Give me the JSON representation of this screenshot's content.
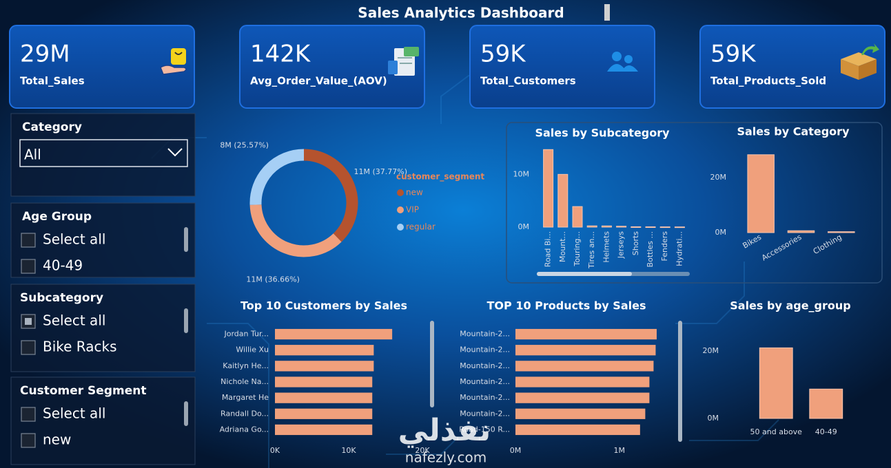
{
  "header": {
    "title": "Sales Analytics Dashboard"
  },
  "kpis": [
    {
      "value": "29M",
      "label": "Total_Sales"
    },
    {
      "value": "142K",
      "label": "Avg_Order_Value_(AOV)"
    },
    {
      "value": "59K",
      "label": "Total_Customers"
    },
    {
      "value": "59K",
      "label": "Total_Products_Sold"
    }
  ],
  "slicers": [
    {
      "title": "Category",
      "selected": "All"
    },
    {
      "title": "Age Group",
      "items": [
        "Select all",
        "40-49"
      ],
      "checked": [
        false,
        false
      ]
    },
    {
      "title": "Subcategory",
      "items": [
        "Select all",
        "Bike Racks"
      ],
      "checked": [
        true,
        false
      ]
    },
    {
      "title": "Customer Segment",
      "items": [
        "Select all",
        "new"
      ],
      "checked": [
        false,
        false
      ]
    }
  ],
  "chart_data": [
    {
      "type": "donut",
      "legend_title": "customer_segment",
      "categories": [
        "new",
        "VIP",
        "regular"
      ],
      "values": [
        37.77,
        36.66,
        25.57
      ],
      "value_labels": [
        "11M (37.77%)",
        "11M (36.66%)",
        "8M (25.57%)"
      ],
      "colors": [
        "#b5532e",
        "#f0a07c",
        "#a6cff5"
      ]
    },
    {
      "type": "bar",
      "title": "Sales by Subcategory",
      "categories": [
        "Road Bi...",
        "Mount...",
        "Touring...",
        "Tires an...",
        "Helmets",
        "Jerseys",
        "Shorts",
        "Bottles ...",
        "Fenders",
        "Hydrati..."
      ],
      "values": [
        14.7,
        10.0,
        3.9,
        0.24,
        0.23,
        0.17,
        0.07,
        0.06,
        0.05,
        0.04
      ],
      "color": "#f0a07c",
      "ylim": [
        0,
        15
      ],
      "yticks": [
        {
          "value": 0,
          "label": "0M"
        },
        {
          "value": 10,
          "label": "10M"
        }
      ],
      "grid": false
    },
    {
      "type": "bar",
      "title": "Sales by Category",
      "categories": [
        "Bikes",
        "Accessories",
        "Clothing"
      ],
      "values": [
        28.3,
        0.7,
        0.34
      ],
      "color": "#f0a07c",
      "ylim": [
        0,
        30
      ],
      "yticks": [
        {
          "value": 0,
          "label": "0M"
        },
        {
          "value": 20,
          "label": "20M"
        }
      ],
      "grid": false
    },
    {
      "type": "hbar",
      "title": "Top 10 Customers by Sales",
      "categories": [
        "Jordan Tur...",
        "Willie Xu",
        "Kaitlyn He...",
        "Nichole Na...",
        "Margaret He",
        "Randall Do...",
        "Adriana Go..."
      ],
      "values": [
        15.9,
        13.4,
        13.4,
        13.2,
        13.2,
        13.2,
        13.2
      ],
      "color": "#f0a07c",
      "xlim": [
        0,
        20
      ],
      "xticks": [
        {
          "value": 0,
          "label": "0K"
        },
        {
          "value": 10,
          "label": "10K"
        },
        {
          "value": 20,
          "label": "20K"
        }
      ],
      "grid": false
    },
    {
      "type": "hbar",
      "title": "TOP 10 Products by Sales",
      "categories": [
        "Mountain-2...",
        "Mountain-2...",
        "Mountain-2...",
        "Mountain-2...",
        "Mountain-2...",
        "Mountain-2...",
        "Road-150 R..."
      ],
      "values": [
        1.36,
        1.35,
        1.33,
        1.29,
        1.29,
        1.25,
        1.2
      ],
      "color": "#f0a07c",
      "xlim": [
        0,
        1.4
      ],
      "xticks": [
        {
          "value": 0,
          "label": "0M"
        },
        {
          "value": 1,
          "label": "1M"
        }
      ],
      "grid": false
    },
    {
      "type": "bar",
      "title": "Sales by age_group",
      "categories": [
        "50 and above",
        "40-49"
      ],
      "values": [
        20.9,
        8.7
      ],
      "color": "#f0a07c",
      "ylim": [
        0,
        22
      ],
      "yticks": [
        {
          "value": 0,
          "label": "0M"
        },
        {
          "value": 20,
          "label": "20M"
        }
      ],
      "grid": false
    }
  ],
  "watermark": {
    "arabic": "نفذلي",
    "latin": "nafezly.com"
  }
}
